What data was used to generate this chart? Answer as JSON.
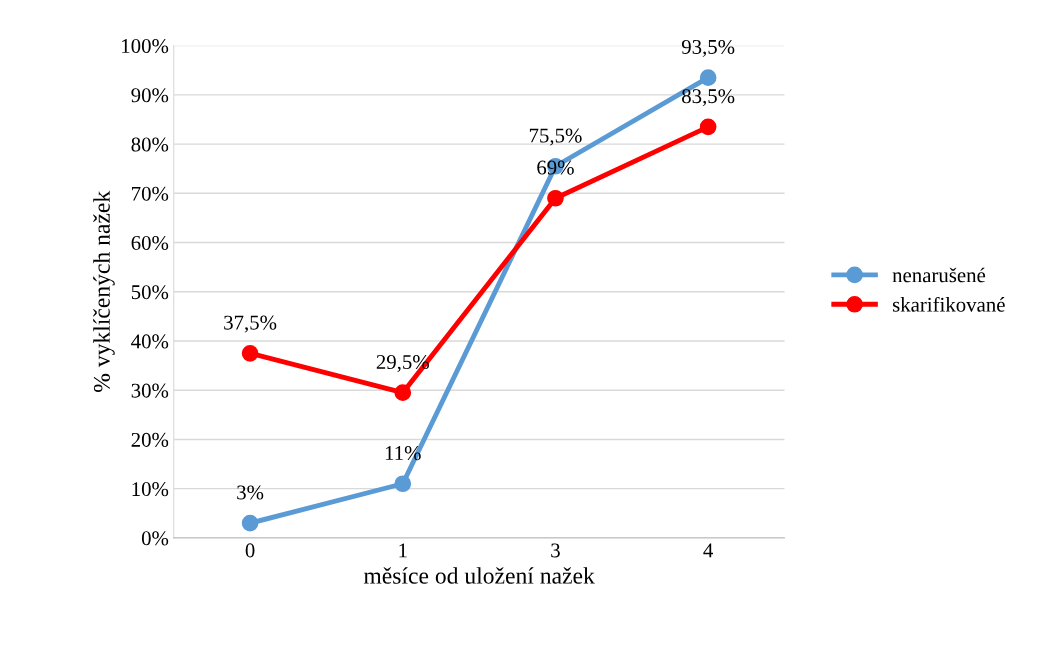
{
  "chart_data": {
    "type": "line",
    "xlabel": "měsíce od uložení nažek",
    "ylabel": "% vyklíčených nažek",
    "categories": [
      "0",
      "1",
      "3",
      "4"
    ],
    "series": [
      {
        "name": "nenarušené",
        "color": "#5b9bd5",
        "values": [
          3,
          11,
          75.5,
          93.5
        ],
        "value_labels": [
          "3%",
          "11%",
          "75,5%",
          "93,5%"
        ]
      },
      {
        "name": "skarifikované",
        "color": "#ff0000",
        "values": [
          37.5,
          29.5,
          69,
          83.5
        ],
        "value_labels": [
          "37,5%",
          "29,5%",
          "69%",
          "83,5%"
        ]
      }
    ],
    "ylim": [
      0,
      100
    ],
    "yticks": [
      {
        "value": 0,
        "label": "0%"
      },
      {
        "value": 10,
        "label": "10%"
      },
      {
        "value": 20,
        "label": "20%"
      },
      {
        "value": 30,
        "label": "30%"
      },
      {
        "value": 40,
        "label": "40%"
      },
      {
        "value": 50,
        "label": "50%"
      },
      {
        "value": 60,
        "label": "60%"
      },
      {
        "value": 70,
        "label": "70%"
      },
      {
        "value": 80,
        "label": "80%"
      },
      {
        "value": 90,
        "label": "90%"
      },
      {
        "value": 100,
        "label": "100%"
      }
    ],
    "grid": "y",
    "legend": "right",
    "marker": "circle",
    "line_style": "solid"
  }
}
